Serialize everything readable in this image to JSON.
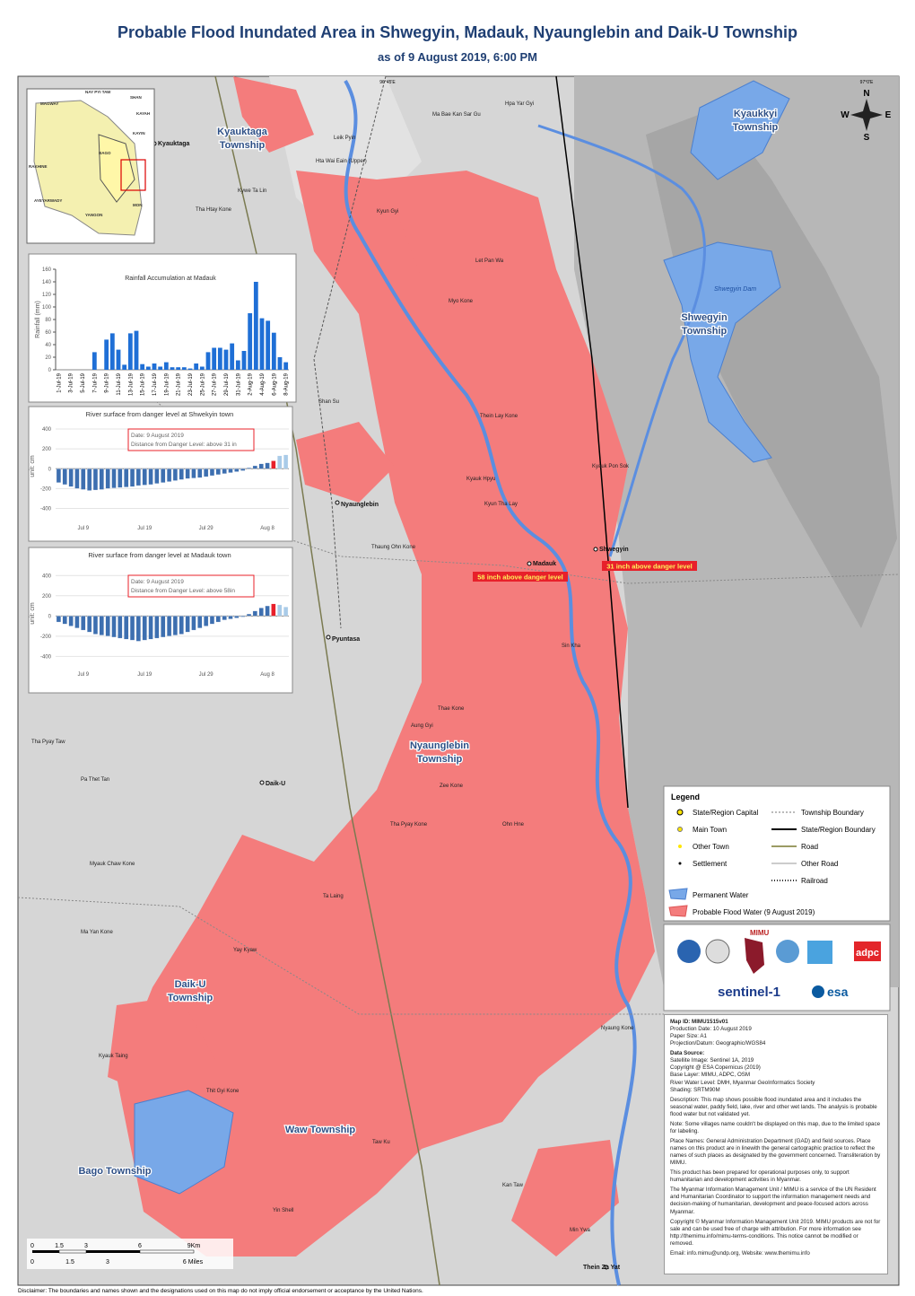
{
  "header": {
    "title": "Probable Flood Inundated Area in Shwegyin, Madauk, Nyaunglebin and Daik-U Township",
    "subtitle": "as of 9 August 2019, 6:00 PM"
  },
  "map": {
    "coordinates": [
      "96°45'E",
      "97°0'E"
    ],
    "compass": [
      "N",
      "W",
      "E",
      "S"
    ],
    "townships": [
      [
        "Kyauktaga",
        "Township"
      ],
      [
        "Kyaukkyi",
        "Township"
      ],
      [
        "Shwegyin",
        "Township"
      ],
      [
        "Nyaunglebin",
        "Township"
      ],
      [
        "Daik-U",
        "Township"
      ],
      [
        "Waw Township"
      ],
      [
        "Bago Township"
      ]
    ],
    "water": [
      "Shwegyin Dam"
    ],
    "annotations": [
      "58 inch above danger level",
      "31 inch above danger level"
    ],
    "towns": [
      "Kyauktaga",
      "Nyaunglebin",
      "Shwegyin",
      "Madauk",
      "Daik-U",
      "Pyuntasa",
      "Thein Za Yat"
    ],
    "places": [
      "Hpa Yar Gyi",
      "Ma Bae Kan Sar Gu",
      "Leik Pyin",
      "Hta Wai Eain (Upper)",
      "Kywe Ta Lin",
      "Tha Htay Kone",
      "Let Pan Wa",
      "Myo Kone",
      "Shan Su",
      "Thein Lay Kone",
      "Kyauk Pon Sok",
      "Kyauk Hpyu",
      "Kyun Tha Lay",
      "Thaung Ohn Kone",
      "Sin Kha",
      "Thae Kone",
      "Tha Pyay Taw",
      "Pa Thet Tan",
      "Zee Kone",
      "Tha Pyay Kone",
      "Myauk Chaw Kone",
      "Nyaung Kone",
      "Thit Gyi Kone",
      "Taw Ku",
      "Min Ywa",
      "Kyauk Taing",
      "Kan Taw",
      "Yin Shell",
      "Aung Gyi",
      "Ta Laing",
      "Kyun Gyi",
      "Ohn Hne",
      "Yay Kyaw",
      "Ma Yan Kone"
    ],
    "inset": [
      "MAGWAY",
      "NAY PYI TAW",
      "SHAN",
      "KAYAH",
      "KAYIN",
      "BAGO",
      "RAKHINE",
      "AYEYARWADY",
      "YANGON",
      "MON"
    ]
  },
  "chart_data": [
    {
      "type": "bar",
      "title": "Rainfall Accumulation at Madauk",
      "y_label": "Rainfall (mm)",
      "color": "#1f6fd6",
      "categories": [
        "1-Jul-19",
        null,
        "3-Jul-19",
        null,
        "5-Jul-19",
        null,
        "7-Jul-19",
        null,
        "9-Jul-19",
        null,
        "11-Jul-19",
        null,
        "13-Jul-19",
        null,
        "15-Jul-19",
        null,
        "17-Jul-19",
        null,
        "19-Jul-19",
        null,
        "21-Jul-19",
        null,
        "23-Jul-19",
        null,
        "25-Jul-19",
        null,
        "27-Jul-19",
        null,
        "29-Jul-19",
        null,
        "31-Jul-19",
        null,
        "2-Aug-19",
        null,
        "4-Aug-19",
        null,
        "6-Aug-19",
        null,
        "8-Aug-19"
      ],
      "values": [
        0,
        0,
        0,
        0,
        0,
        0,
        28,
        0,
        48,
        58,
        32,
        8,
        58,
        62,
        9,
        5,
        10,
        5,
        12,
        4,
        4,
        4,
        2,
        10,
        5,
        28,
        35,
        35,
        32,
        42,
        15,
        30,
        90,
        140,
        82,
        78,
        59,
        20,
        12
      ],
      "ylim": [
        0,
        160
      ],
      "yticks": [
        0,
        20,
        40,
        60,
        80,
        100,
        120,
        140,
        160
      ],
      "grid": false
    },
    {
      "type": "bar",
      "title": "River surface from danger level at Shwekyin town",
      "y_label": "unit: cm",
      "annotation": [
        "Date: 9 August 2019",
        "Distance from Danger Level: above 31 in"
      ],
      "color": "#3d6fb0",
      "categories": [
        null,
        null,
        null,
        null,
        "Jul 9",
        null,
        null,
        null,
        null,
        null,
        null,
        null,
        null,
        null,
        "Jul 19",
        null,
        null,
        null,
        null,
        null,
        null,
        null,
        null,
        null,
        "Jul 29",
        null,
        null,
        null,
        null,
        null,
        null,
        null,
        null,
        null,
        "Aug 8",
        null,
        null,
        null
      ],
      "values": [
        -140,
        -160,
        -180,
        -200,
        -210,
        -220,
        -215,
        -210,
        -200,
        -195,
        -190,
        -185,
        -180,
        -170,
        -165,
        -160,
        -150,
        -140,
        -130,
        -120,
        -110,
        -100,
        -95,
        -90,
        -80,
        -70,
        -60,
        -50,
        -40,
        -30,
        -20,
        10,
        30,
        50,
        60,
        80,
        130,
        140
      ],
      "bar_colors": [
        "#3d6fb0",
        "#3d6fb0",
        "#3d6fb0",
        "#3d6fb0",
        "#3d6fb0",
        "#3d6fb0",
        "#3d6fb0",
        "#3d6fb0",
        "#3d6fb0",
        "#3d6fb0",
        "#3d6fb0",
        "#3d6fb0",
        "#3d6fb0",
        "#3d6fb0",
        "#3d6fb0",
        "#3d6fb0",
        "#3d6fb0",
        "#3d6fb0",
        "#3d6fb0",
        "#3d6fb0",
        "#3d6fb0",
        "#3d6fb0",
        "#3d6fb0",
        "#3d6fb0",
        "#3d6fb0",
        "#3d6fb0",
        "#3d6fb0",
        "#3d6fb0",
        "#3d6fb0",
        "#3d6fb0",
        "#3d6fb0",
        "#3d6fb0",
        "#3d6fb0",
        "#3d6fb0",
        "#3d6fb0",
        "#e8202a",
        "#a9cbe8",
        "#a9cbe8"
      ],
      "ylim": [
        -450,
        500
      ],
      "yticks": [
        -400,
        -200,
        0,
        200,
        400
      ],
      "grid": true
    },
    {
      "type": "bar",
      "title": "River surface from danger level at Madauk town",
      "y_label": "unit: cm",
      "annotation": [
        "Date: 9 August 2019",
        "Distance from Danger Level: above 58in"
      ],
      "color": "#3d6fb0",
      "categories": [
        null,
        null,
        null,
        null,
        "Jul 9",
        null,
        null,
        null,
        null,
        null,
        null,
        null,
        null,
        null,
        "Jul 19",
        null,
        null,
        null,
        null,
        null,
        null,
        null,
        null,
        null,
        "Jul 29",
        null,
        null,
        null,
        null,
        null,
        null,
        null,
        null,
        null,
        "Aug 8",
        null,
        null,
        null
      ],
      "values": [
        -60,
        -80,
        -100,
        -120,
        -140,
        -160,
        -180,
        -190,
        -200,
        -210,
        -220,
        -230,
        -240,
        -250,
        -240,
        -230,
        -220,
        -210,
        -200,
        -190,
        -180,
        -160,
        -140,
        -120,
        -100,
        -80,
        -60,
        -40,
        -30,
        -20,
        -10,
        20,
        50,
        80,
        100,
        120,
        110,
        90
      ],
      "bar_colors": [
        "#3d6fb0",
        "#3d6fb0",
        "#3d6fb0",
        "#3d6fb0",
        "#3d6fb0",
        "#3d6fb0",
        "#3d6fb0",
        "#3d6fb0",
        "#3d6fb0",
        "#3d6fb0",
        "#3d6fb0",
        "#3d6fb0",
        "#3d6fb0",
        "#3d6fb0",
        "#3d6fb0",
        "#3d6fb0",
        "#3d6fb0",
        "#3d6fb0",
        "#3d6fb0",
        "#3d6fb0",
        "#3d6fb0",
        "#3d6fb0",
        "#3d6fb0",
        "#3d6fb0",
        "#3d6fb0",
        "#3d6fb0",
        "#3d6fb0",
        "#3d6fb0",
        "#3d6fb0",
        "#3d6fb0",
        "#3d6fb0",
        "#3d6fb0",
        "#3d6fb0",
        "#3d6fb0",
        "#3d6fb0",
        "#e8202a",
        "#a9cbe8",
        "#a9cbe8"
      ],
      "ylim": [
        -450,
        500
      ],
      "yticks": [
        -400,
        -200,
        0,
        200,
        400
      ],
      "grid": true
    }
  ],
  "legend": {
    "title": "Legend",
    "items": [
      "State/Region Capital",
      "Township Boundary",
      "Main Town",
      "State/Region Boundary",
      "Other Town",
      "Road",
      "Settlement",
      "Other Road",
      "Railroad",
      "Permanent Water",
      "Probable Flood Water (9 August 2019)"
    ]
  },
  "logos": [
    "MIMU",
    "adpc",
    "sentinel-1",
    "esa"
  ],
  "info": {
    "meta": [
      "Map ID: MIMU1515v01",
      "Production Date: 10 August 2019",
      "Paper Size: A1",
      "Projection/Datum: Geographic/WGS84"
    ],
    "source_title": "Data Source:",
    "sources": [
      "Satellite Image: Sentinel 1A, 2019",
      "Copyright @ ESA Copernicus (2019)",
      "Base Layer: MIMU, ADPC, OSM",
      "River Water Level: DMH, Myanmar GeoInformatics Society",
      "Shading: SRTM90M"
    ],
    "paragraphs": [
      "Description: This map shows possible flood inundated area and it includes the seasonal water, paddy field, lake, river and other wet lands. The analysis is probable flood water but not validated yet.",
      "Note: Some villages name couldn't be displayed on this map, due to the limited space for labeling.",
      "Place Names: General Administration Department (GAD) and field sources. Place names on this product are in linewith the general cartographic practice to reflect the names of such places as designated by the government concerned. Transliteration by MIMU.",
      "This product has been prepared for operational purposes only, to support humanitarian and development activities in Myanmar.",
      "The Myanmar Information Management Unit / MIMU is a service of the UN Resident and Humanitarian Coordinator to support the information management needs and decision-making of humanitarian, development and peace-focused actors across Myanmar.",
      "Copyright © Myanmar Information Management Unit 2019. MIMU products are not for sale and can be used free of charge with attribution. For more information see http://themimu.info/mimu-terms-conditions. This notice cannot be modified or removed.",
      "Email: info.mimu@undp.org, Website: www.themimu.info"
    ]
  },
  "scale": {
    "km": [
      "0",
      "1.5",
      "3",
      "6",
      "9Km"
    ],
    "miles": [
      "0",
      "1.5",
      "3",
      "6 Miles"
    ]
  },
  "disclaimer": "Disclaimer: The boundaries and names shown and the designations used on this map do not imply official endorsement or acceptance by the United Nations."
}
